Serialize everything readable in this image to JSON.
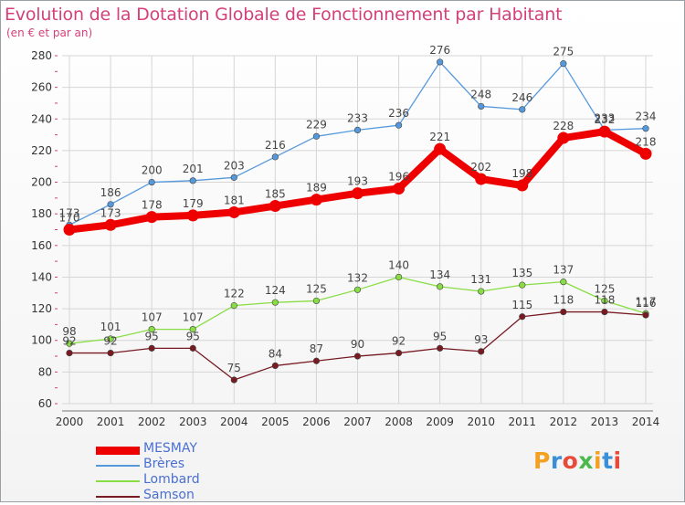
{
  "header": {
    "title": "Evolution de la Dotation Globale de Fonctionnement par Habitant",
    "subtitle": "(en € et par an)"
  },
  "logo": {
    "text": "Proxiti",
    "colors": [
      "#f4a020",
      "#3a8fd8",
      "#e84a3a",
      "#4ab84a",
      "#f4a020",
      "#3a8fd8",
      "#e84a3a"
    ]
  },
  "chart_data": {
    "type": "line",
    "x": [
      "2000",
      "2001",
      "2002",
      "2003",
      "2004",
      "2005",
      "2006",
      "2007",
      "2008",
      "2009",
      "2010",
      "2011",
      "2012",
      "2013",
      "2014"
    ],
    "ylim": [
      60,
      280
    ],
    "yticks": [
      60,
      80,
      100,
      120,
      140,
      160,
      180,
      200,
      220,
      240,
      260,
      280
    ],
    "grid": true,
    "legend_position": "bottom-left",
    "series": [
      {
        "name": "MESMAY",
        "color": "#ee0000",
        "values": [
          170,
          173,
          178,
          179,
          181,
          185,
          189,
          193,
          196,
          221,
          202,
          198,
          228,
          232,
          218
        ]
      },
      {
        "name": "Brères",
        "color": "#5599dd",
        "values": [
          173,
          186,
          200,
          201,
          203,
          216,
          229,
          233,
          236,
          276,
          248,
          246,
          275,
          233,
          234
        ]
      },
      {
        "name": "Lombard",
        "color": "#88dd44",
        "values": [
          98,
          101,
          107,
          107,
          122,
          124,
          125,
          132,
          140,
          134,
          131,
          135,
          137,
          125,
          117
        ]
      },
      {
        "name": "Samson",
        "color": "#771a22",
        "values": [
          92,
          92,
          95,
          95,
          75,
          84,
          87,
          90,
          92,
          95,
          93,
          115,
          118,
          118,
          116
        ]
      }
    ]
  }
}
